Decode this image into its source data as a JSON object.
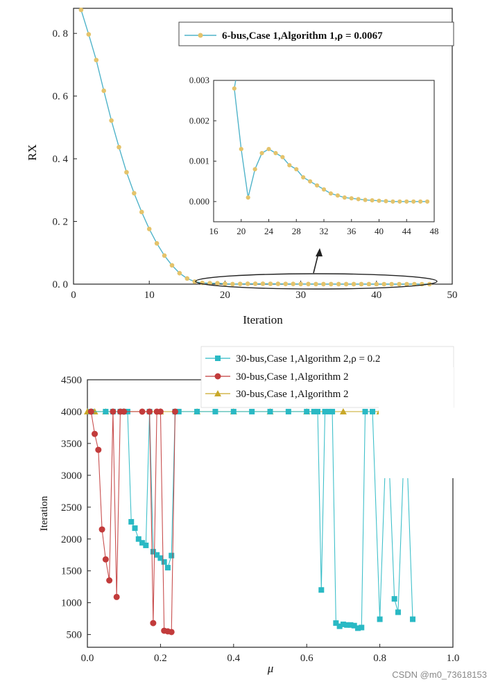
{
  "watermark": "CSDN @m0_73618153",
  "colors": {
    "line_top": "#4fb3c9",
    "marker_top": "#e4c36b",
    "cyan": "#2ab9c4",
    "red": "#c23b3b",
    "gold": "#c9a829"
  },
  "chart_data": [
    {
      "type": "line",
      "ylabel": "RX",
      "xlabel": "Iteration",
      "xlim": [
        0,
        50
      ],
      "ylim": [
        0,
        0.88
      ],
      "xticks": [
        "0",
        "10",
        "20",
        "30",
        "40",
        "50"
      ],
      "yticks": [
        "0.0",
        "0.2",
        "0.4",
        "0.6",
        "0.8"
      ],
      "legend": "top-right",
      "series": [
        {
          "name": "6-bus,Case 1,Algorithm 1,ρ = 0.0067",
          "x": [
            1,
            2,
            3,
            4,
            5,
            6,
            7,
            8,
            9,
            10,
            11,
            12,
            13,
            14,
            15,
            16,
            17,
            18,
            19,
            20,
            21,
            22,
            23,
            24,
            25,
            26,
            27,
            28,
            29,
            30,
            31,
            32,
            33,
            34,
            35,
            36,
            37,
            38,
            39,
            40,
            41,
            42,
            43,
            44,
            45,
            46,
            47
          ],
          "y": [
            0.875,
            0.797,
            0.715,
            0.617,
            0.522,
            0.437,
            0.357,
            0.29,
            0.23,
            0.176,
            0.13,
            0.091,
            0.06,
            0.035,
            0.018,
            0.008,
            0.004,
            0.003,
            0.0028,
            0.0013,
            0.0001,
            0.0008,
            0.0012,
            0.0013,
            0.0012,
            0.0011,
            0.0009,
            0.0008,
            0.0006,
            0.0005,
            0.0004,
            0.0003,
            0.0002,
            0.00015,
            0.0001,
            8e-05,
            6e-05,
            4e-05,
            3e-05,
            2e-05,
            1e-05,
            0,
            0,
            0,
            0,
            0,
            0
          ]
        }
      ],
      "inset": {
        "xlim": [
          16,
          48
        ],
        "ylim": [
          -0.0005,
          0.003
        ],
        "xticks": [
          "16",
          "20",
          "24",
          "28",
          "32",
          "36",
          "40",
          "44",
          "48"
        ],
        "yticks": [
          "0.000",
          "0.001",
          "0.002",
          "0.003"
        ]
      }
    },
    {
      "type": "line",
      "ylabel": "Iteration",
      "xlabel": "μ",
      "xlim": [
        0,
        1.0
      ],
      "ylim": [
        300,
        4500
      ],
      "xticks": [
        "0.0",
        "0.2",
        "0.4",
        "0.6",
        "0.8",
        "1.0"
      ],
      "yticks": [
        "500",
        "1000",
        "1500",
        "2000",
        "2500",
        "3000",
        "3500",
        "4000",
        "4500"
      ],
      "legend": "top-right",
      "series": [
        {
          "name": "30-bus,Case 1,Algorithm 2,ρ = 0.2",
          "marker": "square",
          "x": [
            0.01,
            0.05,
            0.07,
            0.09,
            0.1,
            0.11,
            0.12,
            0.13,
            0.14,
            0.15,
            0.16,
            0.17,
            0.18,
            0.19,
            0.2,
            0.21,
            0.22,
            0.23,
            0.24,
            0.25,
            0.3,
            0.35,
            0.4,
            0.45,
            0.5,
            0.55,
            0.6,
            0.62,
            0.63,
            0.64,
            0.65,
            0.66,
            0.67,
            0.68,
            0.69,
            0.7,
            0.71,
            0.72,
            0.73,
            0.74,
            0.75,
            0.76,
            0.78,
            0.8,
            0.82,
            0.84,
            0.85,
            0.87,
            0.89
          ],
          "y": [
            4000,
            4000,
            4000,
            4000,
            4000,
            4000,
            2270,
            2170,
            2000,
            1940,
            1900,
            4000,
            1800,
            1750,
            1700,
            1640,
            1550,
            1740,
            4000,
            4000,
            4000,
            4000,
            4000,
            4000,
            4000,
            4000,
            4000,
            4000,
            4000,
            1200,
            4000,
            4000,
            4000,
            680,
            630,
            660,
            650,
            650,
            640,
            600,
            610,
            4000,
            4000,
            740,
            4000,
            1060,
            850,
            4000,
            740
          ]
        },
        {
          "name": "30-bus,Case 1,Algorithm 2",
          "marker": "circle",
          "x": [
            0.01,
            0.02,
            0.03,
            0.04,
            0.05,
            0.06,
            0.07,
            0.08,
            0.09,
            0.1,
            0.15,
            0.17,
            0.18,
            0.19,
            0.2,
            0.21,
            0.22,
            0.23,
            0.24
          ],
          "y": [
            4000,
            3650,
            3400,
            2150,
            1680,
            1350,
            4000,
            1090,
            4000,
            4000,
            4000,
            4000,
            680,
            4000,
            4000,
            560,
            550,
            540,
            4000
          ]
        },
        {
          "name": "30-bus,Case 1,Algorithm 2",
          "marker": "triangle",
          "x": [
            0.0,
            0.01,
            0.02,
            0.05,
            0.1,
            0.2,
            0.3,
            0.4,
            0.5,
            0.6,
            0.7,
            0.8
          ],
          "y": [
            4000,
            4000,
            4000,
            4000,
            4000,
            4000,
            4000,
            4000,
            4000,
            4000,
            4000,
            4000
          ]
        }
      ]
    }
  ]
}
